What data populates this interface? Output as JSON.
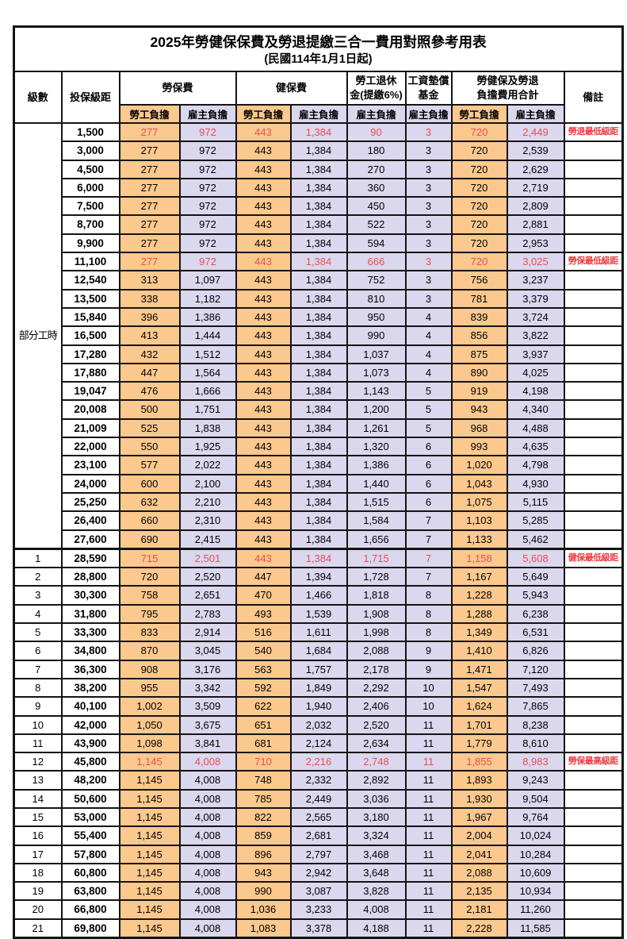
{
  "title": "2025年勞健保保費及勞退提繳三合一費用對照參考用表",
  "subtitle": "(民國114年1月1日起)",
  "colors": {
    "employee_col_bg": "#FBC88E",
    "employer_col_bg": "#DBD7EE",
    "highlight_text": "#E84F55",
    "border": "#141414"
  },
  "header": {
    "level": "級數",
    "bracket": "投保級距",
    "labor_ins": "勞保費",
    "health_ins": "健保費",
    "pension_l1": "勞工退休",
    "pension_l2": "金(提繳6%)",
    "wage_fund_l1": "工資墊償",
    "wage_fund_l2": "基金",
    "total_l1": "勞健保及勞退",
    "total_l2": "負擔費用合計",
    "remark": "備註",
    "employee": "勞工負擔",
    "employer": "雇主負擔"
  },
  "part_time": {
    "label": "部分工時",
    "span": 23,
    "start": 0
  },
  "rows": [
    {
      "level": "",
      "bracket": "1,500",
      "v": [
        "277",
        "972",
        "443",
        "1,384",
        "90",
        "3",
        "720",
        "2,449"
      ],
      "remark": "勞退最低級距",
      "hl": true
    },
    {
      "level": "",
      "bracket": "3,000",
      "v": [
        "277",
        "972",
        "443",
        "1,384",
        "180",
        "3",
        "720",
        "2,539"
      ],
      "remark": "",
      "hl": false
    },
    {
      "level": "",
      "bracket": "4,500",
      "v": [
        "277",
        "972",
        "443",
        "1,384",
        "270",
        "3",
        "720",
        "2,629"
      ],
      "remark": "",
      "hl": false
    },
    {
      "level": "",
      "bracket": "6,000",
      "v": [
        "277",
        "972",
        "443",
        "1,384",
        "360",
        "3",
        "720",
        "2,719"
      ],
      "remark": "",
      "hl": false
    },
    {
      "level": "",
      "bracket": "7,500",
      "v": [
        "277",
        "972",
        "443",
        "1,384",
        "450",
        "3",
        "720",
        "2,809"
      ],
      "remark": "",
      "hl": false
    },
    {
      "level": "",
      "bracket": "8,700",
      "v": [
        "277",
        "972",
        "443",
        "1,384",
        "522",
        "3",
        "720",
        "2,881"
      ],
      "remark": "",
      "hl": false
    },
    {
      "level": "",
      "bracket": "9,900",
      "v": [
        "277",
        "972",
        "443",
        "1,384",
        "594",
        "3",
        "720",
        "2,953"
      ],
      "remark": "",
      "hl": false
    },
    {
      "level": "",
      "bracket": "11,100",
      "v": [
        "277",
        "972",
        "443",
        "1,384",
        "666",
        "3",
        "720",
        "3,025"
      ],
      "remark": "勞保最低級距",
      "hl": true
    },
    {
      "level": "",
      "bracket": "12,540",
      "v": [
        "313",
        "1,097",
        "443",
        "1,384",
        "752",
        "3",
        "756",
        "3,237"
      ],
      "remark": "",
      "hl": false
    },
    {
      "level": "",
      "bracket": "13,500",
      "v": [
        "338",
        "1,182",
        "443",
        "1,384",
        "810",
        "3",
        "781",
        "3,379"
      ],
      "remark": "",
      "hl": false
    },
    {
      "level": "",
      "bracket": "15,840",
      "v": [
        "396",
        "1,386",
        "443",
        "1,384",
        "950",
        "4",
        "839",
        "3,724"
      ],
      "remark": "",
      "hl": false
    },
    {
      "level": "",
      "bracket": "16,500",
      "v": [
        "413",
        "1,444",
        "443",
        "1,384",
        "990",
        "4",
        "856",
        "3,822"
      ],
      "remark": "",
      "hl": false
    },
    {
      "level": "",
      "bracket": "17,280",
      "v": [
        "432",
        "1,512",
        "443",
        "1,384",
        "1,037",
        "4",
        "875",
        "3,937"
      ],
      "remark": "",
      "hl": false
    },
    {
      "level": "",
      "bracket": "17,880",
      "v": [
        "447",
        "1,564",
        "443",
        "1,384",
        "1,073",
        "4",
        "890",
        "4,025"
      ],
      "remark": "",
      "hl": false
    },
    {
      "level": "",
      "bracket": "19,047",
      "v": [
        "476",
        "1,666",
        "443",
        "1,384",
        "1,143",
        "5",
        "919",
        "4,198"
      ],
      "remark": "",
      "hl": false
    },
    {
      "level": "",
      "bracket": "20,008",
      "v": [
        "500",
        "1,751",
        "443",
        "1,384",
        "1,200",
        "5",
        "943",
        "4,340"
      ],
      "remark": "",
      "hl": false
    },
    {
      "level": "",
      "bracket": "21,009",
      "v": [
        "525",
        "1,838",
        "443",
        "1,384",
        "1,261",
        "5",
        "968",
        "4,488"
      ],
      "remark": "",
      "hl": false
    },
    {
      "level": "",
      "bracket": "22,000",
      "v": [
        "550",
        "1,925",
        "443",
        "1,384",
        "1,320",
        "6",
        "993",
        "4,635"
      ],
      "remark": "",
      "hl": false
    },
    {
      "level": "",
      "bracket": "23,100",
      "v": [
        "577",
        "2,022",
        "443",
        "1,384",
        "1,386",
        "6",
        "1,020",
        "4,798"
      ],
      "remark": "",
      "hl": false
    },
    {
      "level": "",
      "bracket": "24,000",
      "v": [
        "600",
        "2,100",
        "443",
        "1,384",
        "1,440",
        "6",
        "1,043",
        "4,930"
      ],
      "remark": "",
      "hl": false
    },
    {
      "level": "",
      "bracket": "25,250",
      "v": [
        "632",
        "2,210",
        "443",
        "1,384",
        "1,515",
        "6",
        "1,075",
        "5,115"
      ],
      "remark": "",
      "hl": false
    },
    {
      "level": "",
      "bracket": "26,400",
      "v": [
        "660",
        "2,310",
        "443",
        "1,384",
        "1,584",
        "7",
        "1,103",
        "5,285"
      ],
      "remark": "",
      "hl": false
    },
    {
      "level": "",
      "bracket": "27,600",
      "v": [
        "690",
        "2,415",
        "443",
        "1,384",
        "1,656",
        "7",
        "1,133",
        "5,462"
      ],
      "remark": "",
      "hl": false
    },
    {
      "level": "1",
      "bracket": "28,590",
      "v": [
        "715",
        "2,501",
        "443",
        "1,384",
        "1,715",
        "7",
        "1,158",
        "5,608"
      ],
      "remark": "健保最低級距",
      "hl": true
    },
    {
      "level": "2",
      "bracket": "28,800",
      "v": [
        "720",
        "2,520",
        "447",
        "1,394",
        "1,728",
        "7",
        "1,167",
        "5,649"
      ],
      "remark": "",
      "hl": false
    },
    {
      "level": "3",
      "bracket": "30,300",
      "v": [
        "758",
        "2,651",
        "470",
        "1,466",
        "1,818",
        "8",
        "1,228",
        "5,943"
      ],
      "remark": "",
      "hl": false
    },
    {
      "level": "4",
      "bracket": "31,800",
      "v": [
        "795",
        "2,783",
        "493",
        "1,539",
        "1,908",
        "8",
        "1,288",
        "6,238"
      ],
      "remark": "",
      "hl": false
    },
    {
      "level": "5",
      "bracket": "33,300",
      "v": [
        "833",
        "2,914",
        "516",
        "1,611",
        "1,998",
        "8",
        "1,349",
        "6,531"
      ],
      "remark": "",
      "hl": false
    },
    {
      "level": "6",
      "bracket": "34,800",
      "v": [
        "870",
        "3,045",
        "540",
        "1,684",
        "2,088",
        "9",
        "1,410",
        "6,826"
      ],
      "remark": "",
      "hl": false
    },
    {
      "level": "7",
      "bracket": "36,300",
      "v": [
        "908",
        "3,176",
        "563",
        "1,757",
        "2,178",
        "9",
        "1,471",
        "7,120"
      ],
      "remark": "",
      "hl": false
    },
    {
      "level": "8",
      "bracket": "38,200",
      "v": [
        "955",
        "3,342",
        "592",
        "1,849",
        "2,292",
        "10",
        "1,547",
        "7,493"
      ],
      "remark": "",
      "hl": false
    },
    {
      "level": "9",
      "bracket": "40,100",
      "v": [
        "1,002",
        "3,509",
        "622",
        "1,940",
        "2,406",
        "10",
        "1,624",
        "7,865"
      ],
      "remark": "",
      "hl": false
    },
    {
      "level": "10",
      "bracket": "42,000",
      "v": [
        "1,050",
        "3,675",
        "651",
        "2,032",
        "2,520",
        "11",
        "1,701",
        "8,238"
      ],
      "remark": "",
      "hl": false
    },
    {
      "level": "11",
      "bracket": "43,900",
      "v": [
        "1,098",
        "3,841",
        "681",
        "2,124",
        "2,634",
        "11",
        "1,779",
        "8,610"
      ],
      "remark": "",
      "hl": false
    },
    {
      "level": "12",
      "bracket": "45,800",
      "v": [
        "1,145",
        "4,008",
        "710",
        "2,216",
        "2,748",
        "11",
        "1,855",
        "8,983"
      ],
      "remark": "勞保最高級距",
      "hl": true
    },
    {
      "level": "13",
      "bracket": "48,200",
      "v": [
        "1,145",
        "4,008",
        "748",
        "2,332",
        "2,892",
        "11",
        "1,893",
        "9,243"
      ],
      "remark": "",
      "hl": false
    },
    {
      "level": "14",
      "bracket": "50,600",
      "v": [
        "1,145",
        "4,008",
        "785",
        "2,449",
        "3,036",
        "11",
        "1,930",
        "9,504"
      ],
      "remark": "",
      "hl": false
    },
    {
      "level": "15",
      "bracket": "53,000",
      "v": [
        "1,145",
        "4,008",
        "822",
        "2,565",
        "3,180",
        "11",
        "1,967",
        "9,764"
      ],
      "remark": "",
      "hl": false
    },
    {
      "level": "16",
      "bracket": "55,400",
      "v": [
        "1,145",
        "4,008",
        "859",
        "2,681",
        "3,324",
        "11",
        "2,004",
        "10,024"
      ],
      "remark": "",
      "hl": false
    },
    {
      "level": "17",
      "bracket": "57,800",
      "v": [
        "1,145",
        "4,008",
        "896",
        "2,797",
        "3,468",
        "11",
        "2,041",
        "10,284"
      ],
      "remark": "",
      "hl": false
    },
    {
      "level": "18",
      "bracket": "60,800",
      "v": [
        "1,145",
        "4,008",
        "943",
        "2,942",
        "3,648",
        "11",
        "2,088",
        "10,609"
      ],
      "remark": "",
      "hl": false
    },
    {
      "level": "19",
      "bracket": "63,800",
      "v": [
        "1,145",
        "4,008",
        "990",
        "3,087",
        "3,828",
        "11",
        "2,135",
        "10,934"
      ],
      "remark": "",
      "hl": false
    },
    {
      "level": "20",
      "bracket": "66,800",
      "v": [
        "1,145",
        "4,008",
        "1,036",
        "3,233",
        "4,008",
        "11",
        "2,181",
        "11,260"
      ],
      "remark": "",
      "hl": false
    },
    {
      "level": "21",
      "bracket": "69,800",
      "v": [
        "1,145",
        "4,008",
        "1,083",
        "3,378",
        "4,188",
        "11",
        "2,228",
        "11,585"
      ],
      "remark": "",
      "hl": false
    }
  ]
}
